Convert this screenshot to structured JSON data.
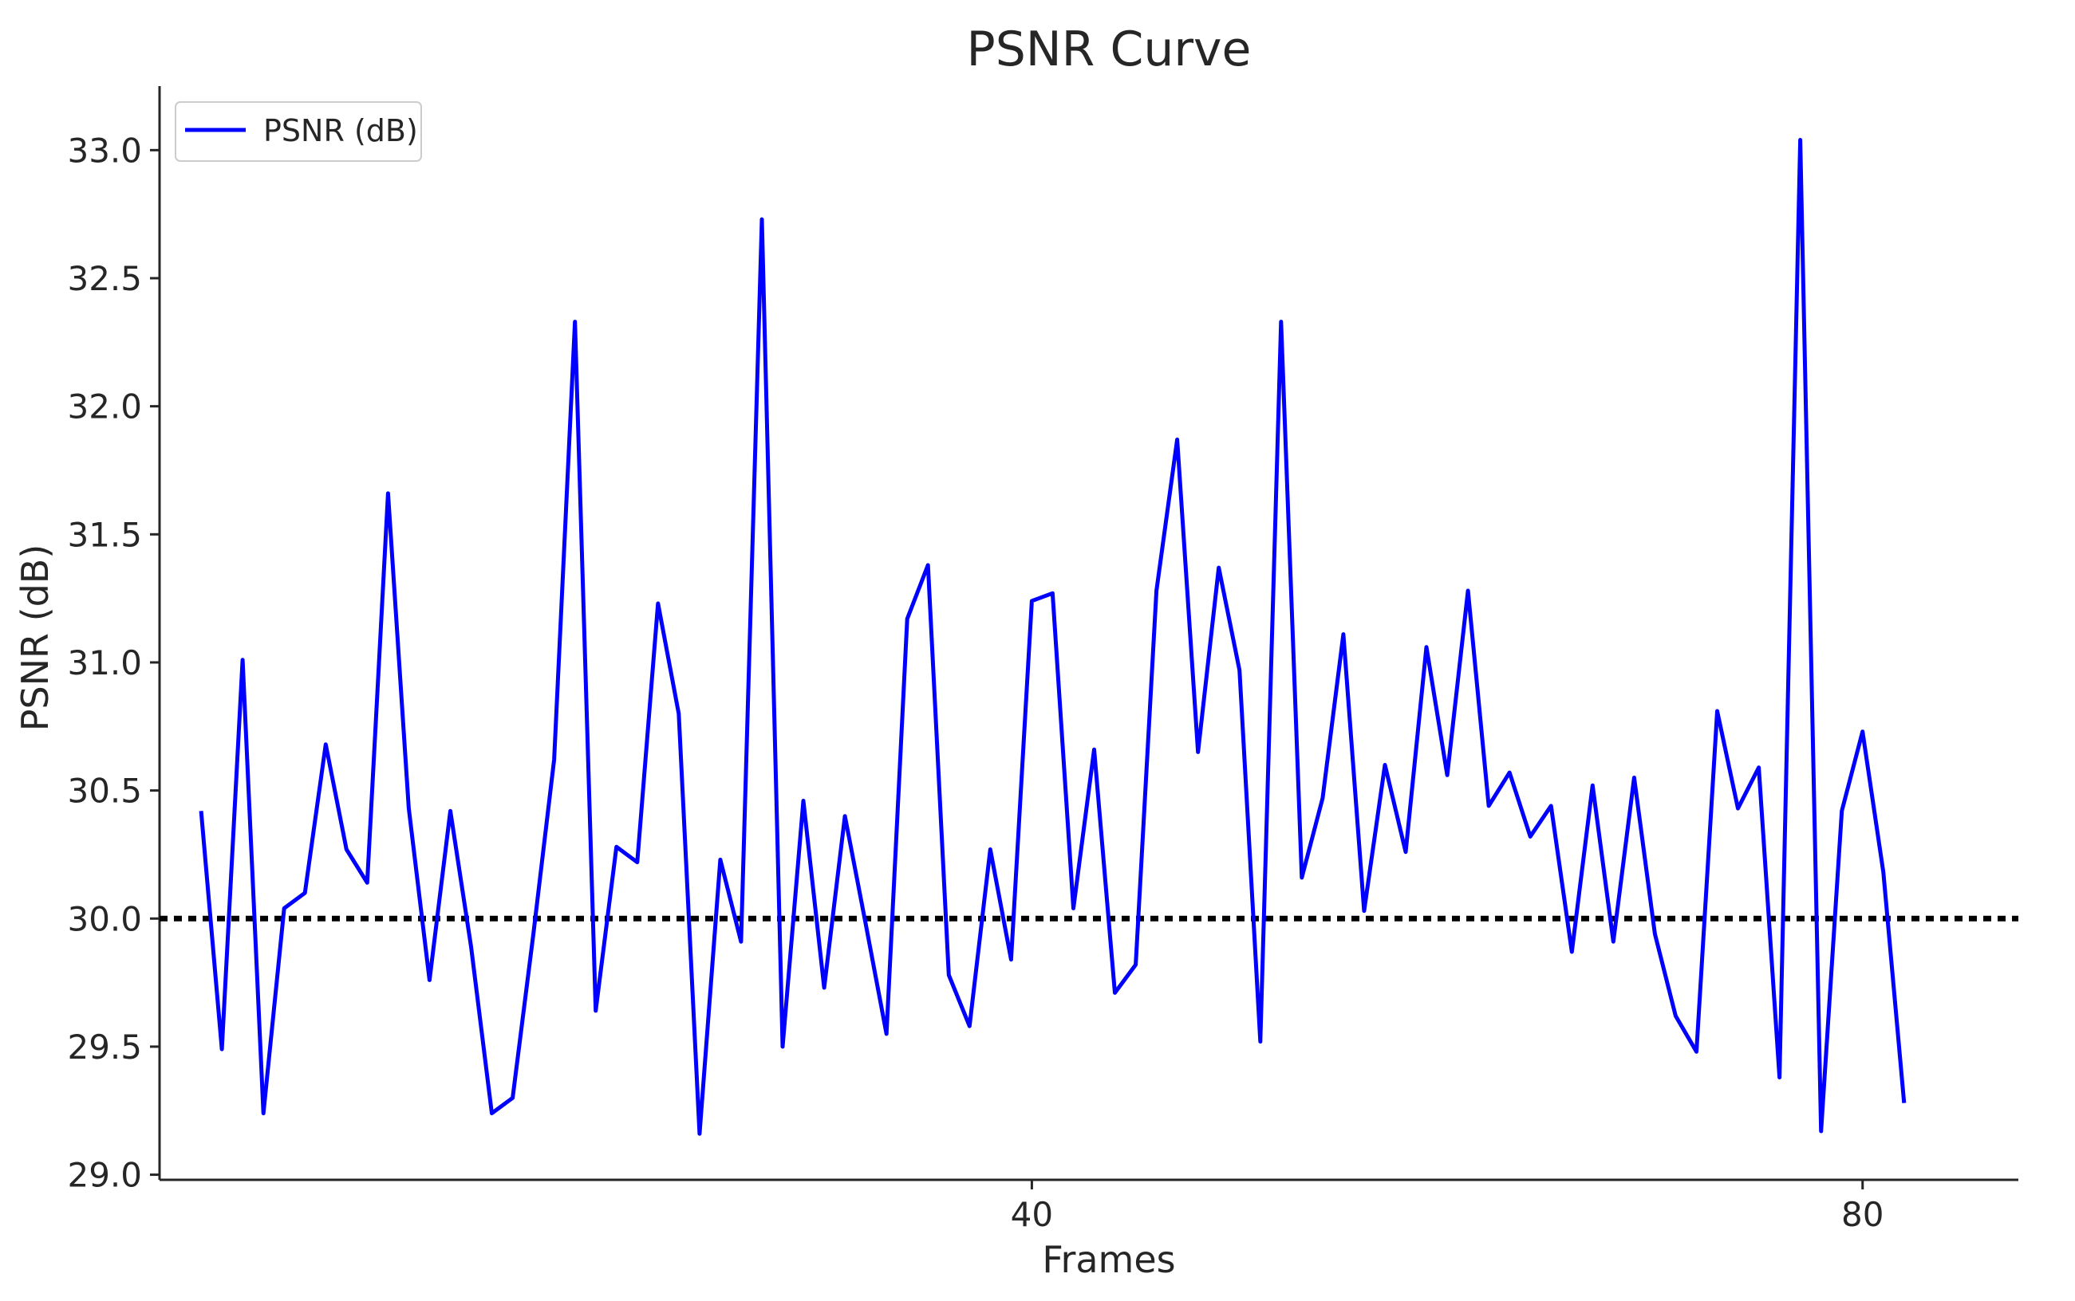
{
  "chart_data": {
    "type": "line",
    "title": "PSNR Curve",
    "xlabel": "Frames",
    "ylabel": "PSNR (dB)",
    "xlim": [
      -2,
      87.5
    ],
    "ylim": [
      28.98,
      33.25
    ],
    "x_ticks": [
      40,
      80
    ],
    "y_ticks": [
      29.0,
      29.5,
      30.0,
      30.5,
      31.0,
      31.5,
      32.0,
      32.5,
      33.0
    ],
    "grid": false,
    "legend_position": "top-left",
    "reference_line": {
      "y": 30.0,
      "style": "dotted",
      "color": "#000000"
    },
    "series": [
      {
        "name": "PSNR (dB)",
        "color": "#0000ff",
        "x_start": 0,
        "x_step": 1,
        "values": [
          30.42,
          29.49,
          31.01,
          29.24,
          30.04,
          30.1,
          30.68,
          30.27,
          30.14,
          31.66,
          30.43,
          29.76,
          30.42,
          29.89,
          29.24,
          29.3,
          29.94,
          30.62,
          32.33,
          29.64,
          30.28,
          30.22,
          31.23,
          30.8,
          29.16,
          30.23,
          29.91,
          32.73,
          29.5,
          30.46,
          29.73,
          30.4,
          29.98,
          29.55,
          31.17,
          31.38,
          29.78,
          29.58,
          30.27,
          29.84,
          31.24,
          31.27,
          30.04,
          30.66,
          29.71,
          29.82,
          31.28,
          31.87,
          30.65,
          31.37,
          30.97,
          29.52,
          32.33,
          30.16,
          30.47,
          31.11,
          30.03,
          30.6,
          30.26,
          31.06,
          30.56,
          31.28,
          30.44,
          30.57,
          30.32,
          30.44,
          29.87,
          30.52,
          29.91,
          30.55,
          29.94,
          29.62,
          29.48,
          30.81,
          30.43,
          30.59,
          29.38,
          33.04,
          29.17,
          30.42,
          30.73,
          30.18,
          29.28
        ]
      }
    ]
  }
}
